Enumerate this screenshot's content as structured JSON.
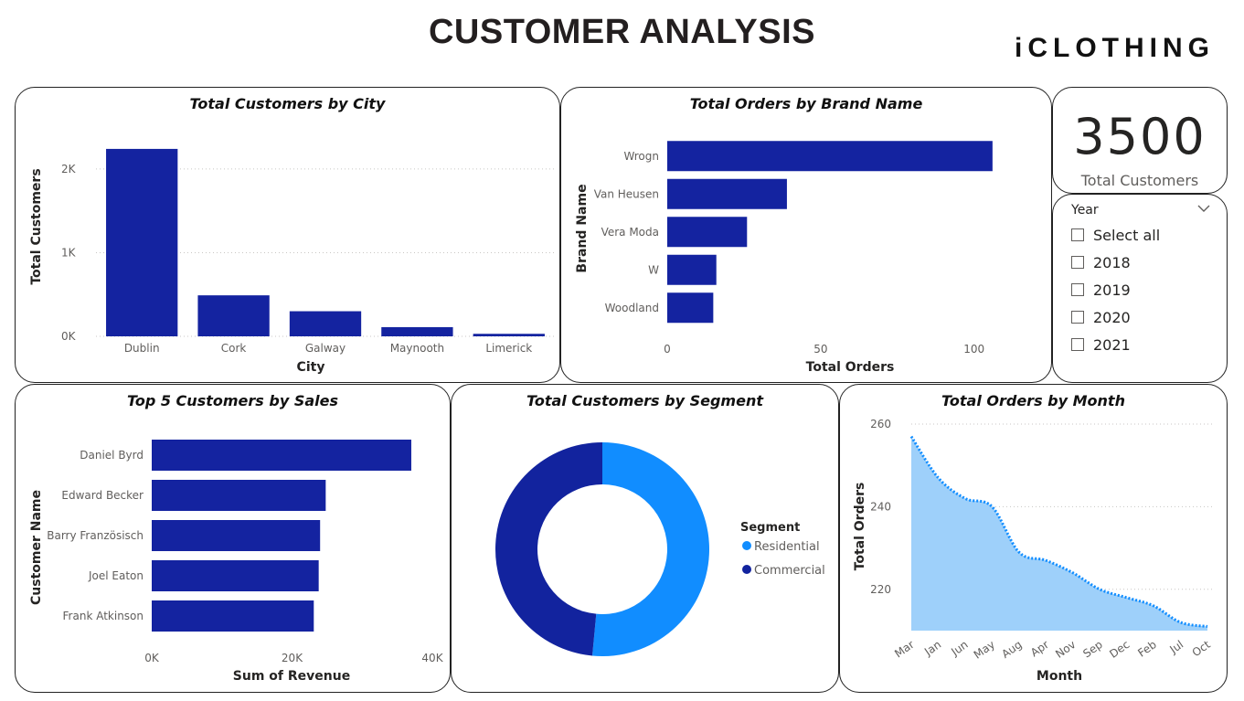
{
  "page": {
    "title": "CUSTOMER ANALYSIS",
    "logo": "iCLOTHING"
  },
  "kpi": {
    "value": "3500",
    "label": "Total Customers"
  },
  "slicer": {
    "title": "Year",
    "items": [
      "Select all",
      "2018",
      "2019",
      "2020",
      "2021"
    ],
    "icon": "chevron-down-icon"
  },
  "colors": {
    "bar": "#1423a0",
    "residential": "#118dff",
    "commercial": "#12239e",
    "area_fill": "#9ed0fa",
    "area_line": "#118dff"
  },
  "chart_data": [
    {
      "type": "bar",
      "orientation": "vertical",
      "title": "Total Customers by City",
      "xlabel": "City",
      "ylabel": "Total Customers",
      "categories": [
        "Dublin",
        "Cork",
        "Galway",
        "Maynooth",
        "Limerick"
      ],
      "values": [
        2240,
        490,
        300,
        110,
        30
      ],
      "ylim": [
        0,
        2250
      ],
      "yticks": [
        0,
        1000,
        2000
      ],
      "ytick_labels": [
        "0K",
        "1K",
        "2K"
      ],
      "grid": true
    },
    {
      "type": "bar",
      "orientation": "horizontal",
      "title": "Total Orders by Brand Name",
      "xlabel": "Total Orders",
      "ylabel": "Brand Name",
      "categories": [
        "Wrogn",
        "Van Heusen",
        "Vera Moda",
        "W",
        "Woodland"
      ],
      "values": [
        106,
        39,
        26,
        16,
        15
      ],
      "xlim": [
        0,
        112
      ],
      "xticks": [
        0,
        50,
        100
      ],
      "xtick_labels": [
        "0",
        "50",
        "100"
      ],
      "grid": false
    },
    {
      "type": "bar",
      "orientation": "horizontal",
      "title": "Top 5 Customers by Sales",
      "xlabel": "Sum of Revenue",
      "ylabel": "Customer Name",
      "categories": [
        "Daniel Byrd",
        "Edward Becker",
        "Barry Französisch",
        "Joel Eaton",
        "Frank Atkinson"
      ],
      "values": [
        37000,
        24800,
        24000,
        23800,
        23100
      ],
      "xlim": [
        0,
        40000
      ],
      "xticks": [
        0,
        20000,
        40000
      ],
      "xtick_labels": [
        "0K",
        "20K",
        "40K"
      ],
      "grid": false
    },
    {
      "type": "pie",
      "donut": true,
      "title": "Total Customers by Segment",
      "legend_title": "Segment",
      "legend_position": "right",
      "categories": [
        "Residential",
        "Commercial"
      ],
      "values": [
        51.5,
        48.5
      ]
    },
    {
      "type": "area",
      "title": "Total Orders by Month",
      "xlabel": "Month",
      "ylabel": "Total Orders",
      "categories": [
        "Mar",
        "Jan",
        "Jun",
        "May",
        "Aug",
        "Apr",
        "Nov",
        "Sep",
        "Dec",
        "Feb",
        "Jul",
        "Oct"
      ],
      "values": [
        257,
        247,
        242,
        240,
        229,
        227,
        224,
        220,
        218,
        216,
        212,
        211
      ],
      "ylim": [
        210,
        260
      ],
      "yticks": [
        220,
        240,
        260
      ],
      "grid": true
    }
  ]
}
